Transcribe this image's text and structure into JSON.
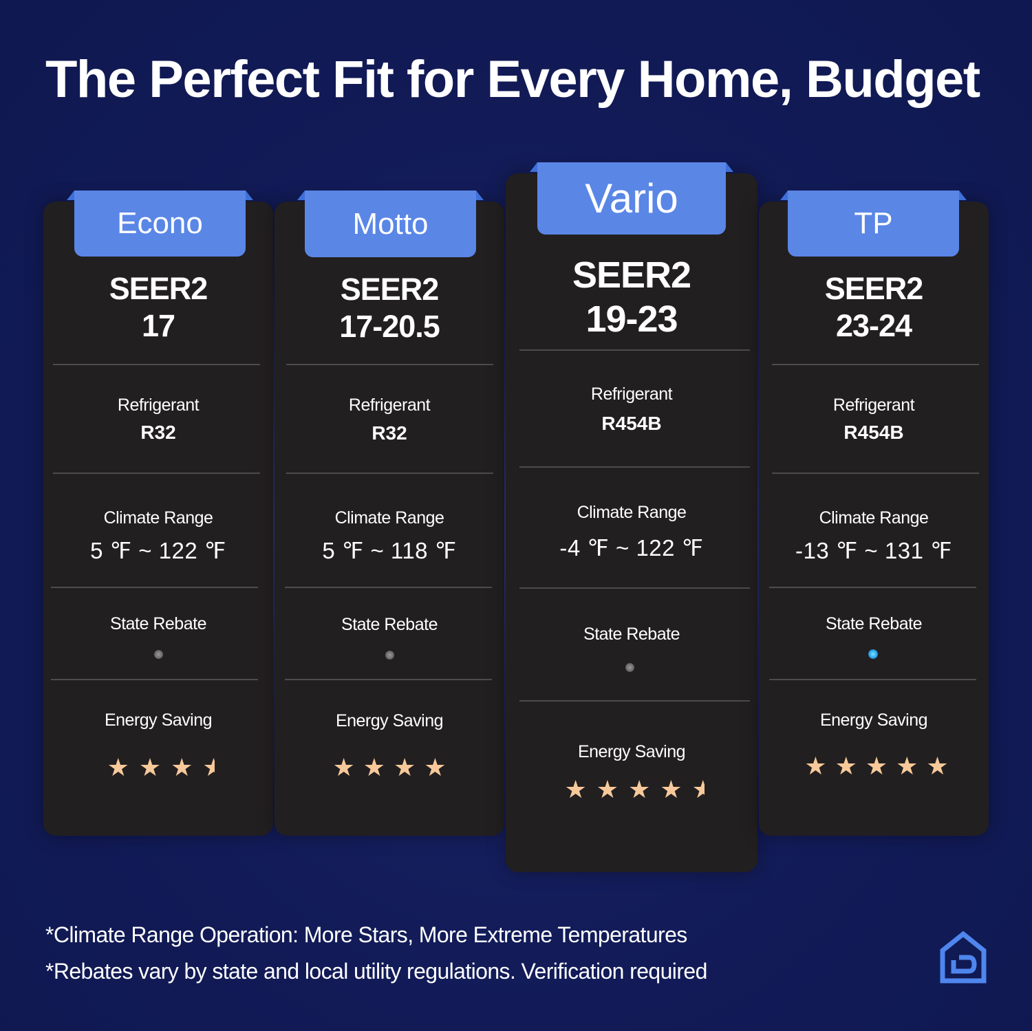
{
  "headline": "The Perfect Fit for Every Home, Budget",
  "labels": {
    "refrigerant": "Refrigerant",
    "climate_range": "Climate Range",
    "state_rebate": "State Rebate",
    "energy_saving": "Energy Saving"
  },
  "models": [
    {
      "name": "Econo",
      "seer_label": "SEER2",
      "seer_value": "17",
      "refrigerant": "R32",
      "climate_range": "5 ℉ ~ 122 ℉",
      "state_rebate": false,
      "energy_stars": 3.5
    },
    {
      "name": "Motto",
      "seer_label": "SEER2",
      "seer_value": "17-20.5",
      "refrigerant": "R32",
      "climate_range": "5 ℉ ~ 118 ℉",
      "state_rebate": false,
      "energy_stars": 4
    },
    {
      "name": "Vario",
      "seer_label": "SEER2",
      "seer_value": "19-23",
      "refrigerant": "R454B",
      "climate_range": "-4 ℉ ~ 122 ℉",
      "state_rebate": false,
      "energy_stars": 4.5
    },
    {
      "name": "TP",
      "seer_label": "SEER2",
      "seer_value": "23-24",
      "refrigerant": "R454B",
      "climate_range": "-13 ℉ ~ 131 ℉",
      "state_rebate": true,
      "energy_stars": 5
    }
  ],
  "footnotes": [
    "*Climate Range Operation: More Stars, More Extreme Temperatures",
    "*Rebates vary by state and local utility regulations. Verification required"
  ],
  "colors": {
    "background": "#111a55",
    "card": "#221f20",
    "tab": "#5a86e6",
    "star": "#f7c99a",
    "rebate_active": "#2aa7f0",
    "rebate_inactive": "#7a7a7a",
    "logo": "#4f86ee"
  },
  "icons": {
    "brand_logo": "house-logo-icon"
  }
}
